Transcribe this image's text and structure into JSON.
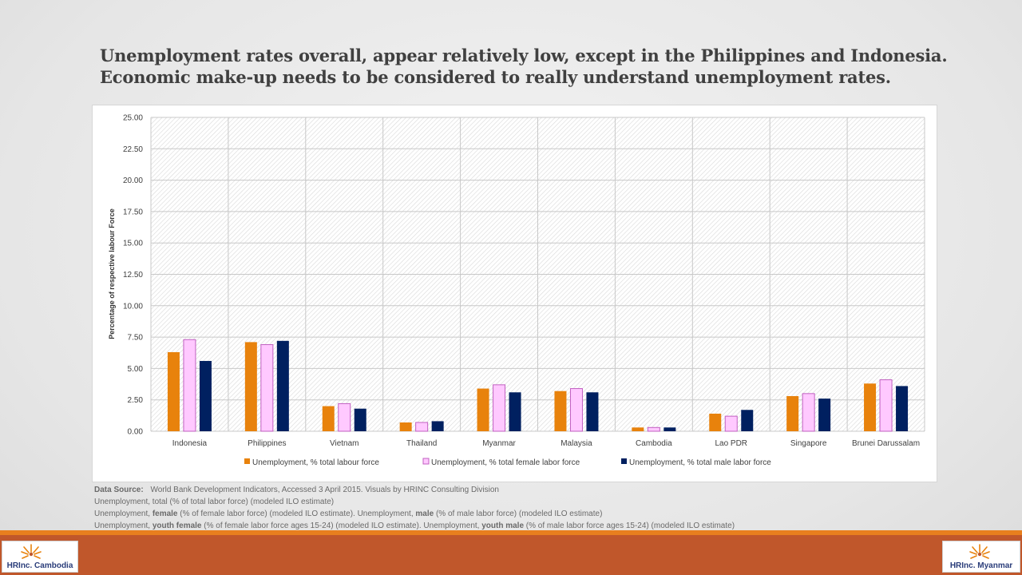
{
  "title_lines": [
    "Unemployment rates overall, appear relatively low, except in the Philippines and Indonesia.",
    "Economic make-up needs to be considered to really understand unemployment rates."
  ],
  "colors": {
    "total": "#e8820c",
    "female": "#ffc9ff",
    "female_border": "#c060c0",
    "male": "#002060",
    "footer": "#c0572b",
    "footer_accent": "#e87f1e"
  },
  "chart_data": {
    "type": "bar",
    "title": "",
    "xlabel": "",
    "ylabel": "Percentage of respective labour Force",
    "ylim": [
      0,
      25
    ],
    "yticks": [
      "0.00",
      "2.50",
      "5.00",
      "7.50",
      "10.00",
      "12.50",
      "15.00",
      "17.50",
      "20.00",
      "22.50",
      "25.00"
    ],
    "grid": true,
    "legend_position": "bottom",
    "categories": [
      "Indonesia",
      "Philippines",
      "Vietnam",
      "Thailand",
      "Myanmar",
      "Malaysia",
      "Cambodia",
      "Lao PDR",
      "Singapore",
      "Brunei Darussalam"
    ],
    "series": [
      {
        "name": "Unemployment, % total labour force",
        "values": [
          6.3,
          7.1,
          2.0,
          0.7,
          3.4,
          3.2,
          0.3,
          1.4,
          2.8,
          3.8
        ]
      },
      {
        "name": "Unemployment, % total female labor force",
        "values": [
          7.3,
          6.9,
          2.2,
          0.7,
          3.7,
          3.4,
          0.3,
          1.2,
          3.0,
          4.1
        ]
      },
      {
        "name": "Unemployment, % total male labor force",
        "values": [
          5.6,
          7.2,
          1.8,
          0.8,
          3.1,
          3.1,
          0.3,
          1.7,
          2.6,
          3.6
        ]
      }
    ]
  },
  "notes": {
    "source_label": "Data Source:",
    "source_text": "World Bank Development Indicators, Accessed 3 April 2015. Visuals by HRINC Consulting Division",
    "line1": "Unemployment, total (% of total labor force) (modeled ILO estimate)",
    "line2_a": "Unemployment, ",
    "line2_b": "female",
    "line2_c": " (% of female labor force) (modeled ILO estimate).  Unemployment, ",
    "line2_d": "male",
    "line2_e": " (% of male labor force) (modeled ILO estimate)",
    "line3_a": "Unemployment, ",
    "line3_b": "youth female",
    "line3_c": " (% of female labor force ages 15-24) (modeled ILO estimate). Unemployment, ",
    "line3_d": "youth male",
    "line3_e": " (% of male labor force ages 15-24) (modeled ILO estimate)"
  },
  "logos": {
    "left_brand": "HRInc.",
    "left_place": "Cambodia",
    "right_brand": "HRInc.",
    "right_place": "Myanmar"
  }
}
